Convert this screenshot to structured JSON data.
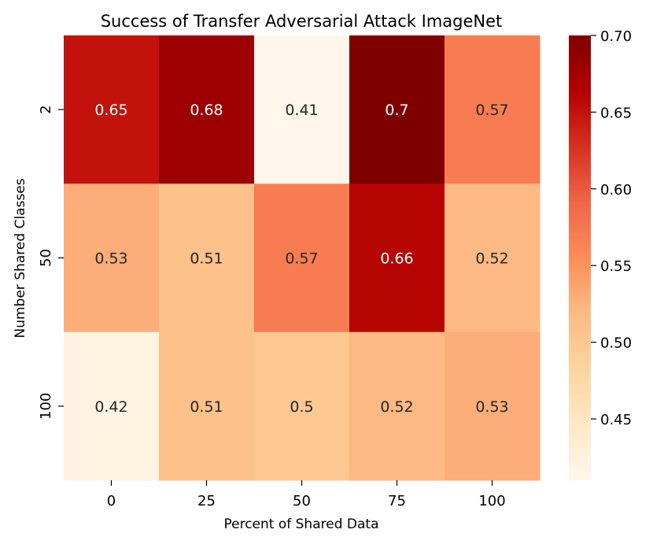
{
  "chart_data": {
    "type": "heatmap",
    "title": "Success of Transfer Adversarial Attack ImageNet",
    "xlabel": "Percent of Shared Data",
    "ylabel": "Number Shared Classes",
    "x": [
      "0",
      "25",
      "50",
      "75",
      "100"
    ],
    "y": [
      "2",
      "50",
      "100"
    ],
    "values": [
      [
        0.65,
        0.68,
        0.41,
        0.7,
        0.57
      ],
      [
        0.53,
        0.51,
        0.57,
        0.66,
        0.52
      ],
      [
        0.42,
        0.51,
        0.5,
        0.52,
        0.53
      ]
    ],
    "cell_labels": [
      [
        "0.65",
        "0.68",
        "0.41",
        "0.7",
        "0.57"
      ],
      [
        "0.53",
        "0.51",
        "0.57",
        "0.66",
        "0.52"
      ],
      [
        "0.42",
        "0.51",
        "0.5",
        "0.52",
        "0.53"
      ]
    ],
    "colormap": "OrRd",
    "colorbar": {
      "range": [
        0.41,
        0.7
      ],
      "ticks": [
        0.45,
        0.5,
        0.55,
        0.6,
        0.65,
        0.7
      ],
      "tick_labels": [
        "0.45",
        "0.50",
        "0.55",
        "0.60",
        "0.65",
        "0.70"
      ]
    },
    "colors": {
      "stops": [
        "#fff7ec",
        "#fee8c8",
        "#fdd49e",
        "#fdbb84",
        "#fc8d59",
        "#ef6548",
        "#d7301f",
        "#b30000",
        "#7f0000"
      ],
      "dark_text": "#262626",
      "light_text": "#ffffff",
      "axis": "#000000"
    }
  }
}
